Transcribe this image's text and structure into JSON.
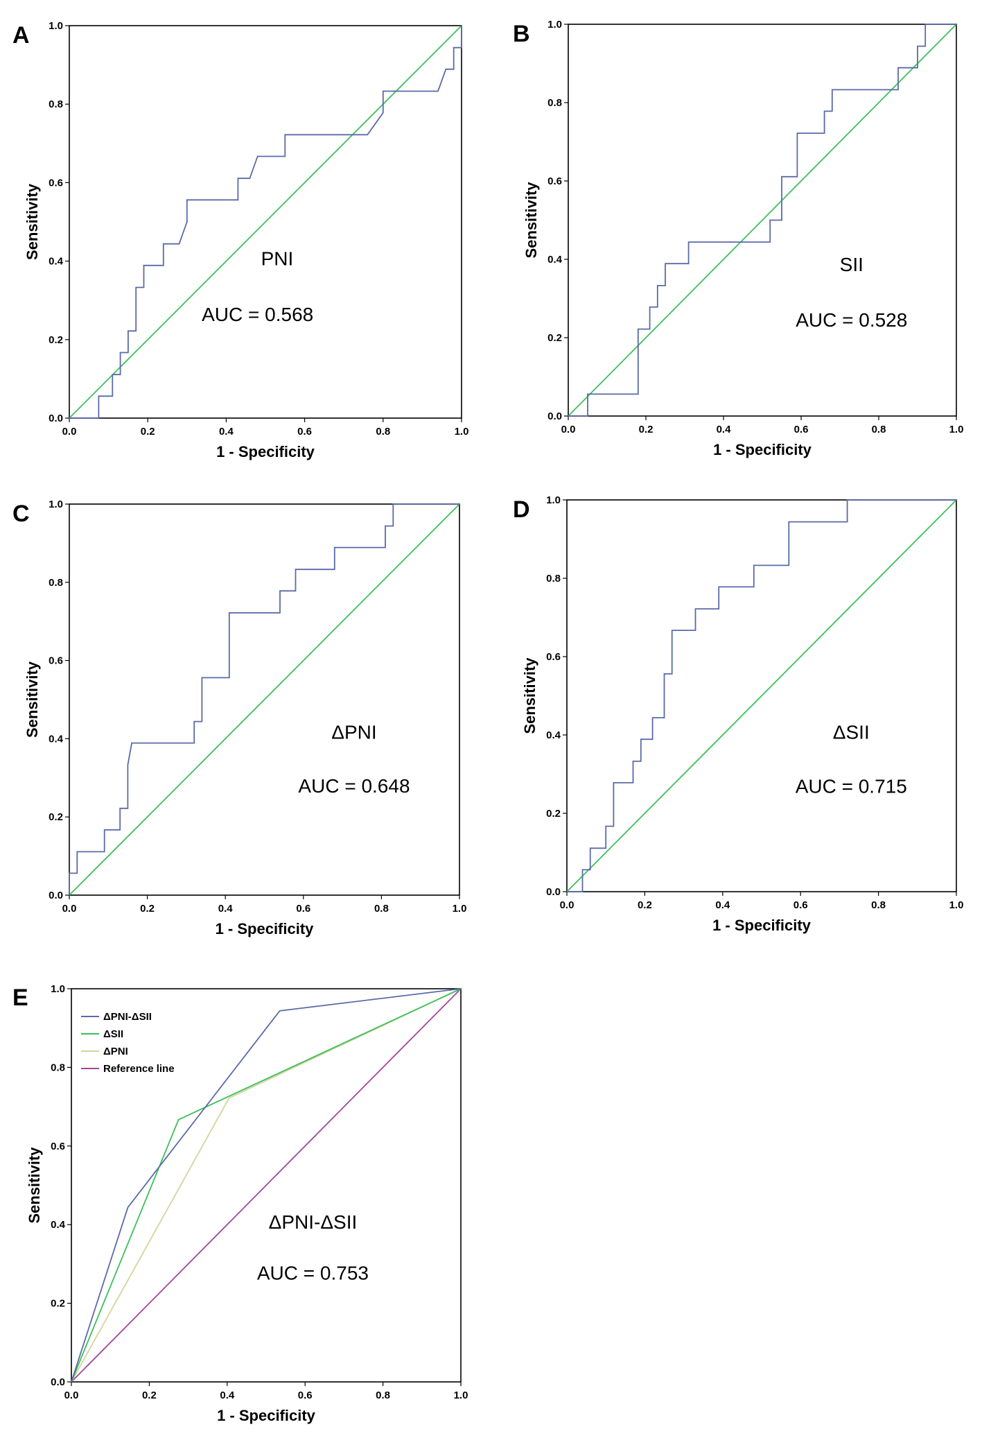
{
  "figure": {
    "description_free": true,
    "colors": {
      "roc": "#5a6aa8",
      "diagonal": "#3cbf5a",
      "dsii": "#3cbf5a",
      "dpni": "#d4d49c",
      "reference": "#a0449c",
      "frame": "#000000"
    }
  },
  "chart_data": [
    {
      "panel": "A",
      "type": "line",
      "xlabel": "1 - Specificity",
      "ylabel": "Sensitivity",
      "xlim": [
        0,
        1
      ],
      "ylim": [
        0,
        1
      ],
      "ticks": [
        "0.0",
        "0.2",
        "0.4",
        "0.6",
        "0.8",
        "1.0"
      ],
      "annotation": "PNI",
      "auc_label": "AUC = 0.568",
      "series": [
        {
          "name": "PNI",
          "color": "#5a6aa8",
          "points": [
            [
              0,
              0
            ],
            [
              0.075,
              0
            ],
            [
              0.075,
              0.056
            ],
            [
              0.11,
              0.056
            ],
            [
              0.11,
              0.111
            ],
            [
              0.13,
              0.111
            ],
            [
              0.13,
              0.167
            ],
            [
              0.15,
              0.167
            ],
            [
              0.15,
              0.222
            ],
            [
              0.17,
              0.222
            ],
            [
              0.17,
              0.333
            ],
            [
              0.19,
              0.333
            ],
            [
              0.19,
              0.389
            ],
            [
              0.24,
              0.389
            ],
            [
              0.24,
              0.444
            ],
            [
              0.28,
              0.444
            ],
            [
              0.3,
              0.5
            ],
            [
              0.3,
              0.556
            ],
            [
              0.43,
              0.556
            ],
            [
              0.43,
              0.611
            ],
            [
              0.46,
              0.611
            ],
            [
              0.48,
              0.667
            ],
            [
              0.55,
              0.667
            ],
            [
              0.55,
              0.722
            ],
            [
              0.76,
              0.722
            ],
            [
              0.8,
              0.778
            ],
            [
              0.8,
              0.833
            ],
            [
              0.94,
              0.833
            ],
            [
              0.96,
              0.889
            ],
            [
              0.98,
              0.889
            ],
            [
              0.98,
              0.944
            ],
            [
              1.0,
              0.944
            ],
            [
              1.0,
              1.0
            ]
          ]
        },
        {
          "name": "Reference",
          "color": "#3cbf5a",
          "points": [
            [
              0,
              0
            ],
            [
              1,
              1
            ]
          ]
        }
      ]
    },
    {
      "panel": "B",
      "type": "line",
      "xlabel": "1 - Specificity",
      "ylabel": "Sensitivity",
      "xlim": [
        0,
        1
      ],
      "ylim": [
        0,
        1
      ],
      "ticks": [
        "0.0",
        "0.2",
        "0.4",
        "0.6",
        "0.8",
        "1.0"
      ],
      "annotation": "SII",
      "auc_label": "AUC = 0.528",
      "series": [
        {
          "name": "SII",
          "color": "#5a6aa8",
          "points": [
            [
              0,
              0
            ],
            [
              0.05,
              0
            ],
            [
              0.05,
              0.056
            ],
            [
              0.18,
              0.056
            ],
            [
              0.18,
              0.222
            ],
            [
              0.21,
              0.222
            ],
            [
              0.21,
              0.278
            ],
            [
              0.23,
              0.278
            ],
            [
              0.23,
              0.333
            ],
            [
              0.25,
              0.333
            ],
            [
              0.25,
              0.389
            ],
            [
              0.31,
              0.389
            ],
            [
              0.31,
              0.444
            ],
            [
              0.52,
              0.444
            ],
            [
              0.52,
              0.5
            ],
            [
              0.55,
              0.5
            ],
            [
              0.55,
              0.611
            ],
            [
              0.59,
              0.611
            ],
            [
              0.59,
              0.722
            ],
            [
              0.66,
              0.722
            ],
            [
              0.66,
              0.778
            ],
            [
              0.68,
              0.778
            ],
            [
              0.68,
              0.833
            ],
            [
              0.85,
              0.833
            ],
            [
              0.85,
              0.889
            ],
            [
              0.9,
              0.889
            ],
            [
              0.9,
              0.944
            ],
            [
              0.92,
              0.944
            ],
            [
              0.92,
              1.0
            ],
            [
              1.0,
              1.0
            ]
          ]
        },
        {
          "name": "Reference",
          "color": "#3cbf5a",
          "points": [
            [
              0,
              0
            ],
            [
              1,
              1
            ]
          ]
        }
      ]
    },
    {
      "panel": "C",
      "type": "line",
      "xlabel": "1 - Specificity",
      "ylabel": "Sensitivity",
      "xlim": [
        0,
        1
      ],
      "ylim": [
        0,
        1
      ],
      "ticks": [
        "0.0",
        "0.2",
        "0.4",
        "0.6",
        "0.8",
        "1.0"
      ],
      "annotation": "ΔPNI",
      "auc_label": "AUC = 0.648",
      "series": [
        {
          "name": "ΔPNI",
          "color": "#5a6aa8",
          "points": [
            [
              0,
              0
            ],
            [
              0,
              0.056
            ],
            [
              0.02,
              0.056
            ],
            [
              0.02,
              0.111
            ],
            [
              0.09,
              0.111
            ],
            [
              0.09,
              0.167
            ],
            [
              0.13,
              0.167
            ],
            [
              0.13,
              0.222
            ],
            [
              0.15,
              0.222
            ],
            [
              0.15,
              0.333
            ],
            [
              0.16,
              0.389
            ],
            [
              0.32,
              0.389
            ],
            [
              0.32,
              0.444
            ],
            [
              0.34,
              0.444
            ],
            [
              0.34,
              0.556
            ],
            [
              0.41,
              0.556
            ],
            [
              0.41,
              0.722
            ],
            [
              0.54,
              0.722
            ],
            [
              0.54,
              0.778
            ],
            [
              0.58,
              0.778
            ],
            [
              0.58,
              0.833
            ],
            [
              0.68,
              0.833
            ],
            [
              0.68,
              0.889
            ],
            [
              0.81,
              0.889
            ],
            [
              0.81,
              0.944
            ],
            [
              0.83,
              0.944
            ],
            [
              0.83,
              1.0
            ],
            [
              1.0,
              1.0
            ]
          ]
        },
        {
          "name": "Reference",
          "color": "#3cbf5a",
          "points": [
            [
              0,
              0
            ],
            [
              1,
              1
            ]
          ]
        }
      ]
    },
    {
      "panel": "D",
      "type": "line",
      "xlabel": "1 - Specificity",
      "ylabel": "Sensitivity",
      "xlim": [
        0,
        1
      ],
      "ylim": [
        0,
        1
      ],
      "ticks": [
        "0.0",
        "0.2",
        "0.4",
        "0.6",
        "0.8",
        "1.0"
      ],
      "annotation": "ΔSII",
      "auc_label": "AUC = 0.715",
      "series": [
        {
          "name": "ΔSII",
          "color": "#5a6aa8",
          "points": [
            [
              0,
              0
            ],
            [
              0.04,
              0
            ],
            [
              0.04,
              0.056
            ],
            [
              0.06,
              0.056
            ],
            [
              0.06,
              0.111
            ],
            [
              0.1,
              0.111
            ],
            [
              0.1,
              0.167
            ],
            [
              0.12,
              0.167
            ],
            [
              0.12,
              0.278
            ],
            [
              0.17,
              0.278
            ],
            [
              0.17,
              0.333
            ],
            [
              0.19,
              0.333
            ],
            [
              0.19,
              0.389
            ],
            [
              0.22,
              0.389
            ],
            [
              0.22,
              0.444
            ],
            [
              0.25,
              0.444
            ],
            [
              0.25,
              0.556
            ],
            [
              0.27,
              0.556
            ],
            [
              0.27,
              0.667
            ],
            [
              0.33,
              0.667
            ],
            [
              0.33,
              0.722
            ],
            [
              0.39,
              0.722
            ],
            [
              0.39,
              0.778
            ],
            [
              0.48,
              0.778
            ],
            [
              0.48,
              0.833
            ],
            [
              0.57,
              0.833
            ],
            [
              0.57,
              0.944
            ],
            [
              0.72,
              0.944
            ],
            [
              0.72,
              1.0
            ],
            [
              1.0,
              1.0
            ]
          ]
        },
        {
          "name": "Reference",
          "color": "#3cbf5a",
          "points": [
            [
              0,
              0
            ],
            [
              1,
              1
            ]
          ]
        }
      ]
    },
    {
      "panel": "E",
      "type": "line",
      "xlabel": "1 - Specificity",
      "ylabel": "Sensitivity",
      "xlim": [
        0,
        1
      ],
      "ylim": [
        0,
        1
      ],
      "ticks": [
        "0.0",
        "0.2",
        "0.4",
        "0.6",
        "0.8",
        "1.0"
      ],
      "annotation": "ΔPNI-ΔSII",
      "auc_label": "AUC = 0.753",
      "legend": [
        "ΔPNI-ΔSII",
        "ΔSII",
        "ΔPNI",
        "Reference line"
      ],
      "series": [
        {
          "name": "ΔPNI-ΔSII",
          "color": "#5a6aa8",
          "points": [
            [
              0,
              0
            ],
            [
              0.145,
              0.444
            ],
            [
              0.535,
              0.944
            ],
            [
              1.0,
              1.0
            ]
          ]
        },
        {
          "name": "ΔSII",
          "color": "#3cbf5a",
          "points": [
            [
              0,
              0
            ],
            [
              0.275,
              0.667
            ],
            [
              1.0,
              1.0
            ]
          ]
        },
        {
          "name": "ΔPNI",
          "color": "#d4d49c",
          "points": [
            [
              0,
              0
            ],
            [
              0.405,
              0.722
            ],
            [
              1.0,
              1.0
            ]
          ]
        },
        {
          "name": "Reference line",
          "color": "#a0449c",
          "points": [
            [
              0,
              0
            ],
            [
              1,
              1
            ]
          ]
        }
      ]
    }
  ]
}
